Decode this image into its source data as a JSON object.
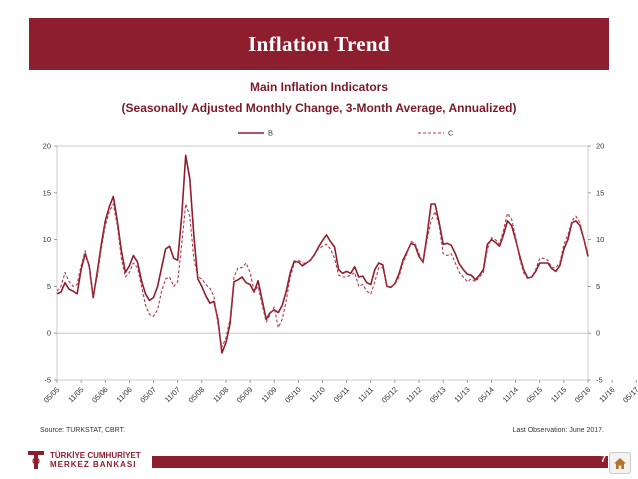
{
  "header": {
    "title": "Inflation Trend"
  },
  "chart_data": {
    "type": "line",
    "title": "Main Inflation Indicators",
    "subtitle": "(Seasonally Adjusted Monthly Change, 3-Month Average, Annualized)",
    "xlabel": "",
    "ylabel": "",
    "ylim": [
      -5,
      20
    ],
    "yticks": [
      -5,
      0,
      5,
      10,
      15,
      20
    ],
    "xtick_labels": [
      "05/05",
      "11/05",
      "05/06",
      "11/06",
      "05/07",
      "11/07",
      "05/08",
      "11/08",
      "05/09",
      "11/09",
      "05/10",
      "11/10",
      "05/11",
      "11/11",
      "05/12",
      "11/12",
      "05/13",
      "11/13",
      "05/14",
      "11/14",
      "05/15",
      "11/15",
      "05/16",
      "11/16",
      "05/17"
    ],
    "legend_position": "top",
    "series": [
      {
        "name": "B",
        "style": "solid",
        "color": "#8d1e2e",
        "values": [
          4.2,
          4.4,
          5.4,
          4.7,
          4.5,
          4.2,
          6.8,
          8.5,
          7.2,
          3.8,
          6.5,
          9.5,
          12.0,
          13.5,
          14.6,
          12.0,
          8.8,
          6.5,
          7.2,
          8.3,
          7.6,
          5.6,
          4.2,
          3.5,
          3.8,
          5.0,
          7.0,
          9.0,
          9.3,
          8.0,
          7.8,
          12.5,
          19.0,
          16.5,
          10.5,
          5.8,
          5.0,
          4.0,
          3.2,
          3.4,
          1.5,
          -2.1,
          -1.0,
          1.0,
          5.5,
          5.7,
          6.0,
          5.4,
          5.2,
          4.4,
          5.6,
          3.5,
          1.5,
          2.2,
          2.5,
          2.2,
          3.0,
          4.5,
          6.5,
          7.7,
          7.6,
          7.2,
          7.5,
          7.8,
          8.4,
          9.2,
          9.9,
          10.5,
          9.8,
          9.2,
          6.8,
          6.4,
          6.6,
          6.4,
          7.1,
          6.0,
          6.1,
          5.4,
          5.2,
          6.8,
          7.5,
          7.3,
          5.0,
          4.9,
          5.3,
          6.3,
          7.8,
          8.7,
          9.6,
          9.4,
          8.2,
          7.6,
          10.5,
          13.8,
          13.8,
          11.8,
          9.5,
          9.6,
          9.4,
          8.5,
          7.4,
          6.8,
          6.3,
          6.2,
          5.7,
          6.2,
          6.8,
          9.5,
          10.0,
          9.7,
          9.3,
          10.5,
          12.0,
          11.5,
          10.0,
          8.3,
          6.8,
          5.9,
          6.0,
          6.6,
          7.5,
          7.5,
          7.5,
          6.9,
          6.6,
          7.2,
          9.0,
          10.0,
          11.8,
          12.0,
          11.5,
          10.0,
          8.2
        ]
      },
      {
        "name": "C",
        "style": "dashed",
        "color": "#b03a4e",
        "values": [
          4.5,
          5.0,
          6.5,
          5.5,
          5.0,
          5.2,
          7.2,
          8.8,
          7.0,
          4.0,
          6.0,
          9.0,
          11.5,
          13.0,
          13.8,
          11.5,
          8.0,
          6.0,
          6.5,
          7.5,
          7.0,
          5.0,
          3.0,
          2.0,
          1.8,
          2.5,
          4.5,
          5.8,
          6.0,
          5.0,
          5.5,
          9.5,
          13.8,
          12.5,
          8.0,
          6.0,
          5.8,
          5.2,
          4.8,
          4.0,
          1.0,
          -1.5,
          -0.5,
          1.5,
          6.0,
          7.0,
          7.0,
          7.5,
          6.5,
          4.5,
          5.0,
          3.0,
          1.2,
          2.0,
          2.8,
          0.6,
          1.5,
          3.5,
          6.0,
          7.5,
          7.8,
          7.5,
          7.5,
          7.8,
          8.5,
          9.0,
          9.3,
          9.5,
          9.0,
          8.0,
          6.2,
          6.0,
          6.0,
          6.2,
          6.5,
          5.0,
          5.2,
          4.5,
          4.2,
          5.5,
          7.0,
          7.0,
          5.0,
          5.0,
          5.2,
          6.0,
          7.5,
          8.5,
          9.8,
          9.6,
          8.5,
          7.5,
          10.0,
          12.0,
          13.0,
          11.5,
          8.5,
          8.3,
          8.5,
          7.5,
          6.5,
          6.0,
          5.5,
          5.8,
          5.5,
          6.0,
          6.5,
          9.0,
          10.2,
          10.0,
          9.5,
          11.0,
          12.8,
          12.2,
          10.3,
          8.0,
          6.5,
          5.8,
          6.0,
          6.8,
          8.0,
          8.0,
          7.8,
          7.0,
          7.0,
          7.5,
          9.5,
          10.5,
          12.0,
          12.5,
          11.8,
          10.0,
          8.5
        ]
      }
    ]
  },
  "footer": {
    "source": "Source: TURKSTAT, CBRT.",
    "last_observation": "Last Observation: June 2017.",
    "page_number": "7",
    "logo_line1": "TÜRKİYE CUMHURİYET",
    "logo_line2": "MERKEZ BANKASI",
    "home_icon": "home-icon"
  }
}
